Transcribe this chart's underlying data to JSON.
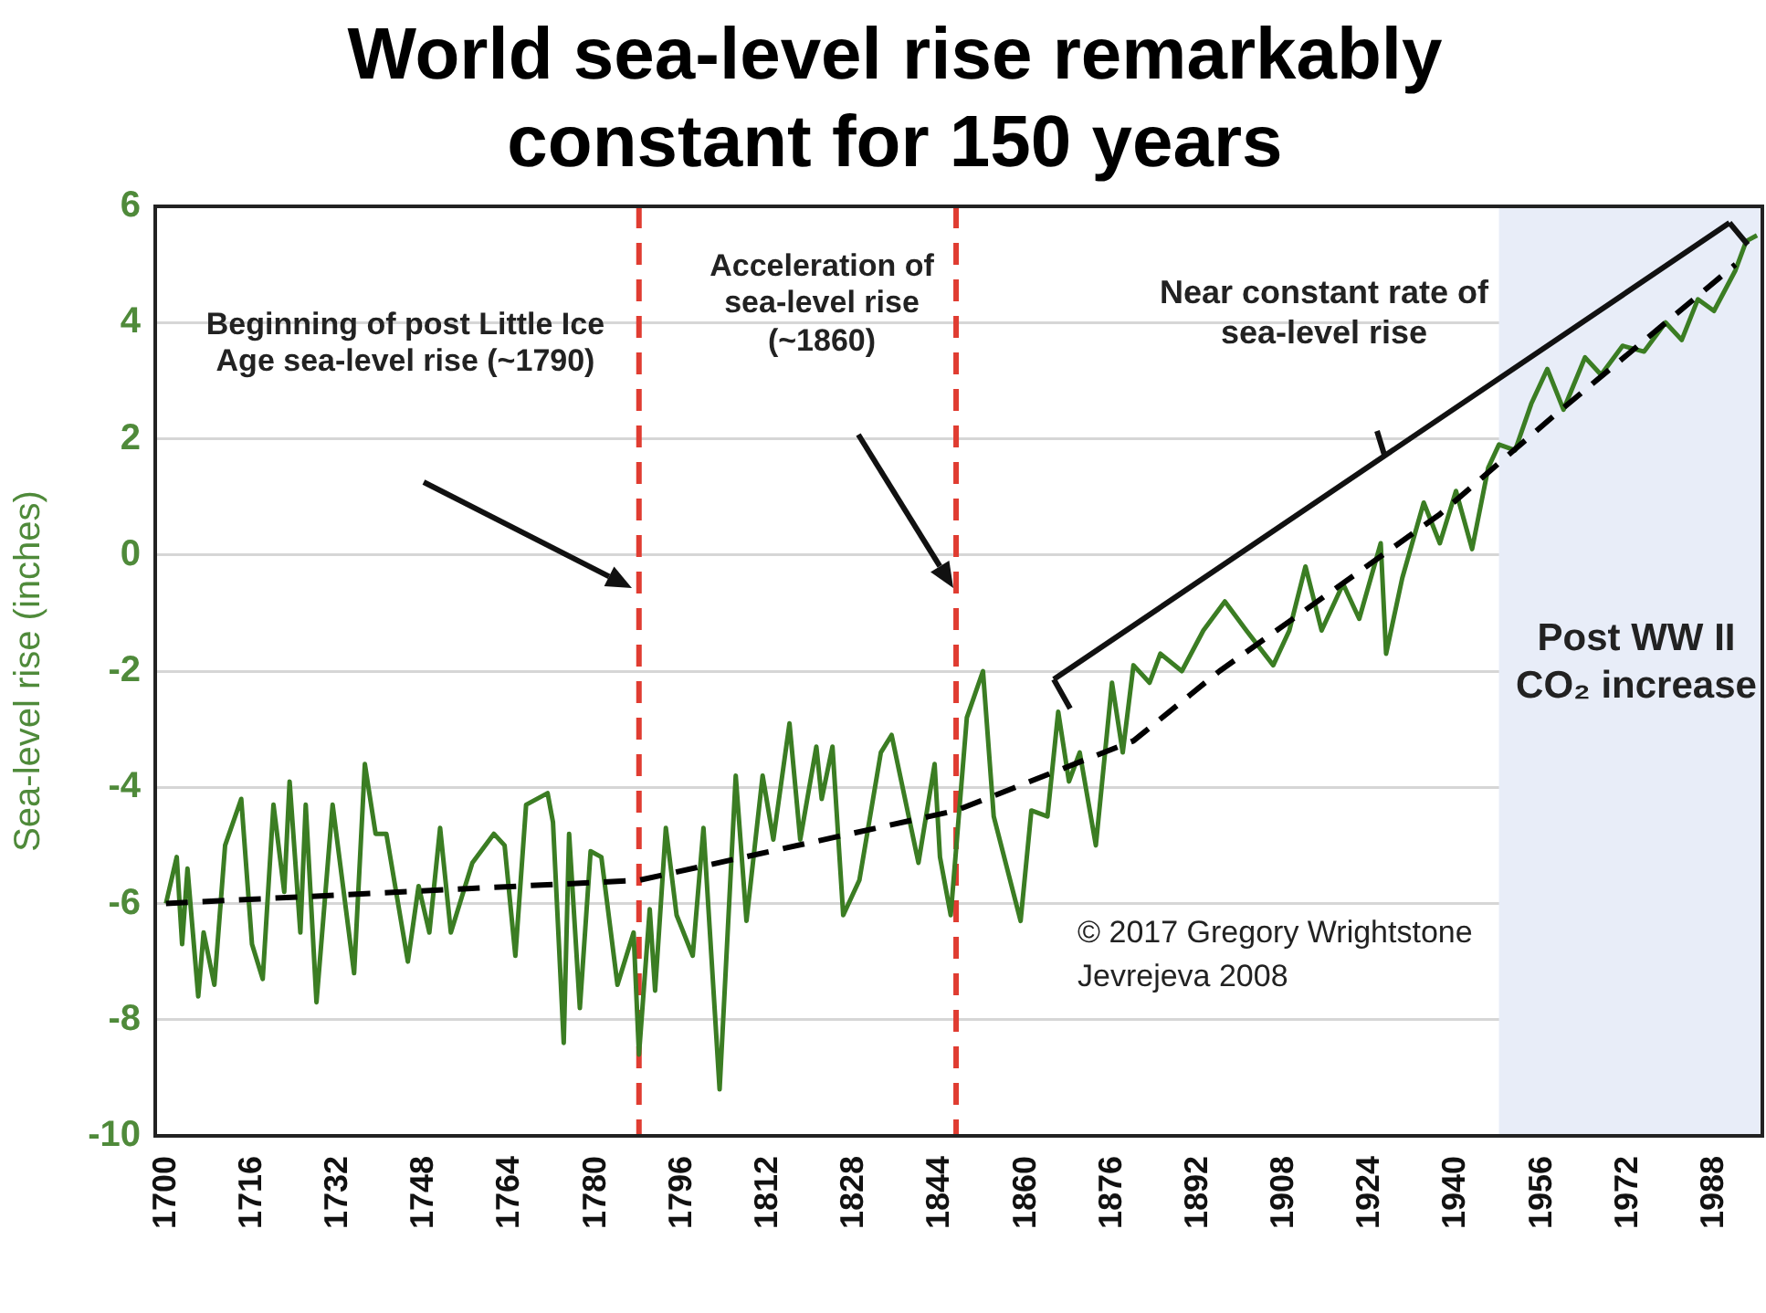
{
  "chart_data": {
    "type": "line",
    "title": "World sea-level rise remarkably constant for 150 years",
    "ylabel": "Sea-level rise (inches)",
    "x": [
      1700,
      1702,
      1703,
      1704,
      1706,
      1707,
      1709,
      1711,
      1714,
      1716,
      1718,
      1720,
      1722,
      1723,
      1725,
      1726,
      1728,
      1731,
      1735,
      1737,
      1739,
      1741,
      1743,
      1745,
      1747,
      1749,
      1751,
      1753,
      1757,
      1761,
      1763,
      1765,
      1767,
      1771,
      1772,
      1774,
      1775,
      1777,
      1779,
      1781,
      1784,
      1787,
      1788,
      1790,
      1791,
      1793,
      1795,
      1798,
      1800,
      1803,
      1806,
      1808,
      1811,
      1813,
      1816,
      1818,
      1821,
      1822,
      1824,
      1826,
      1829,
      1833,
      1835,
      1840,
      1843,
      1844,
      1846,
      1849,
      1852,
      1854,
      1859,
      1861,
      1864,
      1866,
      1868,
      1870,
      1873,
      1876,
      1878,
      1880,
      1883,
      1885,
      1889,
      1893,
      1897,
      1901,
      1906,
      1909,
      1912,
      1915,
      1919,
      1922,
      1926,
      1927,
      1930,
      1934,
      1937,
      1940,
      1943,
      1946,
      1948,
      1951,
      1954,
      1957,
      1960,
      1964,
      1967,
      1971,
      1975,
      1979,
      1982,
      1985,
      1988,
      1992,
      1994,
      1996
    ],
    "xlim": [
      1698,
      1997
    ],
    "xticks": [
      1700,
      1716,
      1732,
      1748,
      1764,
      1780,
      1796,
      1812,
      1828,
      1844,
      1860,
      1876,
      1892,
      1908,
      1924,
      1940,
      1956,
      1972,
      1988
    ],
    "ylim": [
      -10,
      6
    ],
    "yticks": [
      -10,
      -8,
      -6,
      -4,
      -2,
      0,
      2,
      4,
      6
    ],
    "grid": "y",
    "marker": "none",
    "series": [
      {
        "color": "#3b7d23",
        "values": [
          -6.0,
          -5.2,
          -6.7,
          -5.4,
          -7.6,
          -6.5,
          -7.4,
          -5.0,
          -4.2,
          -6.7,
          -7.3,
          -4.3,
          -5.8,
          -3.9,
          -6.5,
          -4.3,
          -7.7,
          -4.3,
          -7.2,
          -3.6,
          -4.8,
          -4.8,
          -5.9,
          -7.0,
          -5.7,
          -6.5,
          -4.7,
          -6.5,
          -5.3,
          -4.8,
          -5.0,
          -6.9,
          -4.3,
          -4.1,
          -4.6,
          -8.4,
          -4.8,
          -7.8,
          -5.1,
          -5.2,
          -7.4,
          -6.5,
          -8.6,
          -6.1,
          -7.5,
          -4.7,
          -6.2,
          -6.9,
          -4.7,
          -9.2,
          -3.8,
          -6.3,
          -3.8,
          -4.9,
          -2.9,
          -4.9,
          -3.3,
          -4.2,
          -3.3,
          -6.2,
          -5.6,
          -3.4,
          -3.1,
          -5.3,
          -3.6,
          -5.2,
          -6.2,
          -2.8,
          -2.0,
          -4.5,
          -6.3,
          -4.4,
          -4.5,
          -2.7,
          -3.9,
          -3.4,
          -5.0,
          -2.2,
          -3.4,
          -1.9,
          -2.2,
          -1.7,
          -2.0,
          -1.3,
          -0.8,
          -1.3,
          -1.9,
          -1.3,
          -0.2,
          -1.3,
          -0.5,
          -1.1,
          0.2,
          -1.7,
          -0.4,
          0.9,
          0.2,
          1.1,
          0.1,
          1.5,
          1.9,
          1.8,
          2.6,
          3.2,
          2.5,
          3.4,
          3.1,
          3.6,
          3.5,
          4.0,
          3.7,
          4.4,
          4.2,
          4.9,
          5.4,
          5.5
        ]
      },
      {
        "type": "line",
        "x": [
          1700,
          1788,
          1847,
          1880,
          1896,
          1937,
          1957,
          1992
        ],
        "color": "#000000",
        "line_style": "dashed",
        "values": [
          -6.0,
          -5.6,
          -4.4,
          -3.2,
          -2.0,
          0.7,
          2.3,
          5.0
        ]
      }
    ],
    "ref_lines": [
      {
        "axis": "x",
        "value": 1788,
        "color": "#e03c31",
        "line_style": "dashed",
        "label": "Beginning of post Little Ice Age sea-level rise (~1790)"
      },
      {
        "axis": "x",
        "value": 1847,
        "color": "#e03c31",
        "line_style": "dashed",
        "label": "Acceleration of sea-level rise (~1860)"
      }
    ],
    "bands": [
      {
        "axis": "x",
        "from": 1948,
        "to": 1997,
        "color": "#e8edf8",
        "label": "Post WW II CO₂ increase"
      }
    ],
    "annotations": [
      "Near constant rate of sea-level rise",
      "© 2017 Gregory Wrightstone",
      "Jevrejeva 2008"
    ]
  }
}
